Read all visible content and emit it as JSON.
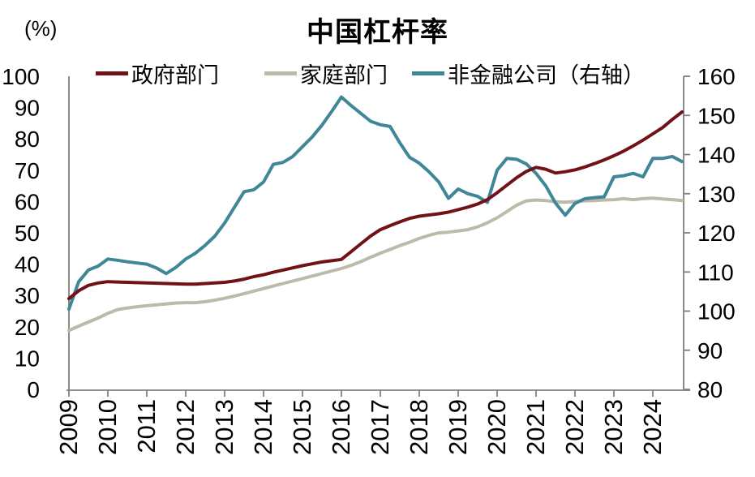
{
  "chart_data": {
    "type": "line",
    "title": "中国杠杆率",
    "unit_label": "(%)",
    "frequency": "quarterly",
    "x_start": "2009Q1",
    "x_end": "2024Q4",
    "x_tick_labels": [
      "2009",
      "2010",
      "2011",
      "2012",
      "2013",
      "2014",
      "2015",
      "2016",
      "2017",
      "2018",
      "2019",
      "2020",
      "2021",
      "2022",
      "2023",
      "2024"
    ],
    "left_axis": {
      "min": 0,
      "max": 100,
      "ticks": [
        0,
        10,
        20,
        30,
        40,
        50,
        60,
        70,
        80,
        90,
        100
      ]
    },
    "right_axis": {
      "min": 80,
      "max": 160,
      "ticks": [
        80,
        90,
        100,
        110,
        120,
        130,
        140,
        150,
        160
      ]
    },
    "grid": "off",
    "legend_position": "top",
    "colors": {
      "axis": "#7f7f7f",
      "text": "#000000"
    },
    "series": [
      {
        "name": "家庭部门",
        "axis": "left",
        "color": "#BDBAA9",
        "values": [
          18.8,
          20.2,
          21.5,
          22.8,
          24.3,
          25.5,
          26.0,
          26.4,
          26.7,
          27.0,
          27.3,
          27.6,
          27.7,
          27.7,
          28.0,
          28.5,
          29.1,
          29.8,
          30.6,
          31.4,
          32.2,
          33.0,
          33.8,
          34.6,
          35.4,
          36.2,
          37.0,
          37.8,
          38.6,
          39.6,
          40.8,
          42.2,
          43.5,
          44.7,
          45.9,
          47.0,
          48.2,
          49.2,
          50.0,
          50.2,
          50.6,
          51.0,
          51.9,
          53.2,
          54.8,
          56.8,
          58.8,
          60.2,
          60.5,
          60.3,
          59.9,
          59.8,
          60.0,
          60.2,
          60.3,
          60.5,
          60.6,
          60.9,
          60.6,
          60.9,
          61.1,
          60.8,
          60.6,
          60.3
        ]
      },
      {
        "name": "非金融公司（右轴）",
        "axis": "right",
        "color": "#3E8698",
        "values": [
          100.5,
          107.5,
          110.5,
          111.5,
          113.3,
          113.0,
          112.6,
          112.3,
          112.0,
          111.0,
          109.6,
          111.2,
          113.3,
          114.8,
          116.8,
          119.2,
          122.5,
          126.5,
          130.5,
          131.0,
          133.0,
          137.5,
          138.0,
          139.5,
          142.0,
          144.5,
          147.5,
          151.0,
          154.7,
          152.5,
          150.5,
          148.5,
          147.6,
          147.2,
          143.0,
          139.3,
          137.8,
          135.6,
          133.0,
          128.8,
          131.2,
          130.0,
          129.3,
          127.8,
          136.0,
          139.0,
          138.8,
          137.6,
          135.2,
          132.0,
          127.6,
          124.5,
          127.5,
          128.7,
          129.0,
          129.2,
          134.3,
          134.6,
          135.2,
          134.3,
          139.0,
          139.0,
          139.5,
          138.2
        ]
      },
      {
        "name": "政府部门",
        "axis": "left",
        "color": "#701216",
        "values": [
          29.0,
          31.5,
          33.2,
          34.0,
          34.4,
          34.3,
          34.2,
          34.1,
          34.0,
          33.9,
          33.8,
          33.7,
          33.6,
          33.6,
          33.8,
          34.0,
          34.2,
          34.6,
          35.2,
          36.0,
          36.6,
          37.4,
          38.1,
          38.8,
          39.5,
          40.1,
          40.7,
          41.1,
          41.5,
          44.0,
          46.5,
          49.0,
          51.0,
          52.3,
          53.5,
          54.6,
          55.3,
          55.7,
          56.1,
          56.6,
          57.4,
          58.2,
          59.2,
          60.6,
          62.8,
          65.2,
          67.6,
          69.6,
          70.9,
          70.3,
          69.1,
          69.5,
          70.1,
          71.0,
          72.1,
          73.3,
          74.6,
          76.1,
          77.8,
          79.6,
          81.6,
          83.6,
          86.2,
          88.6
        ]
      }
    ],
    "legend": [
      "政府部门",
      "家庭部门",
      "非金融公司（右轴）"
    ]
  }
}
